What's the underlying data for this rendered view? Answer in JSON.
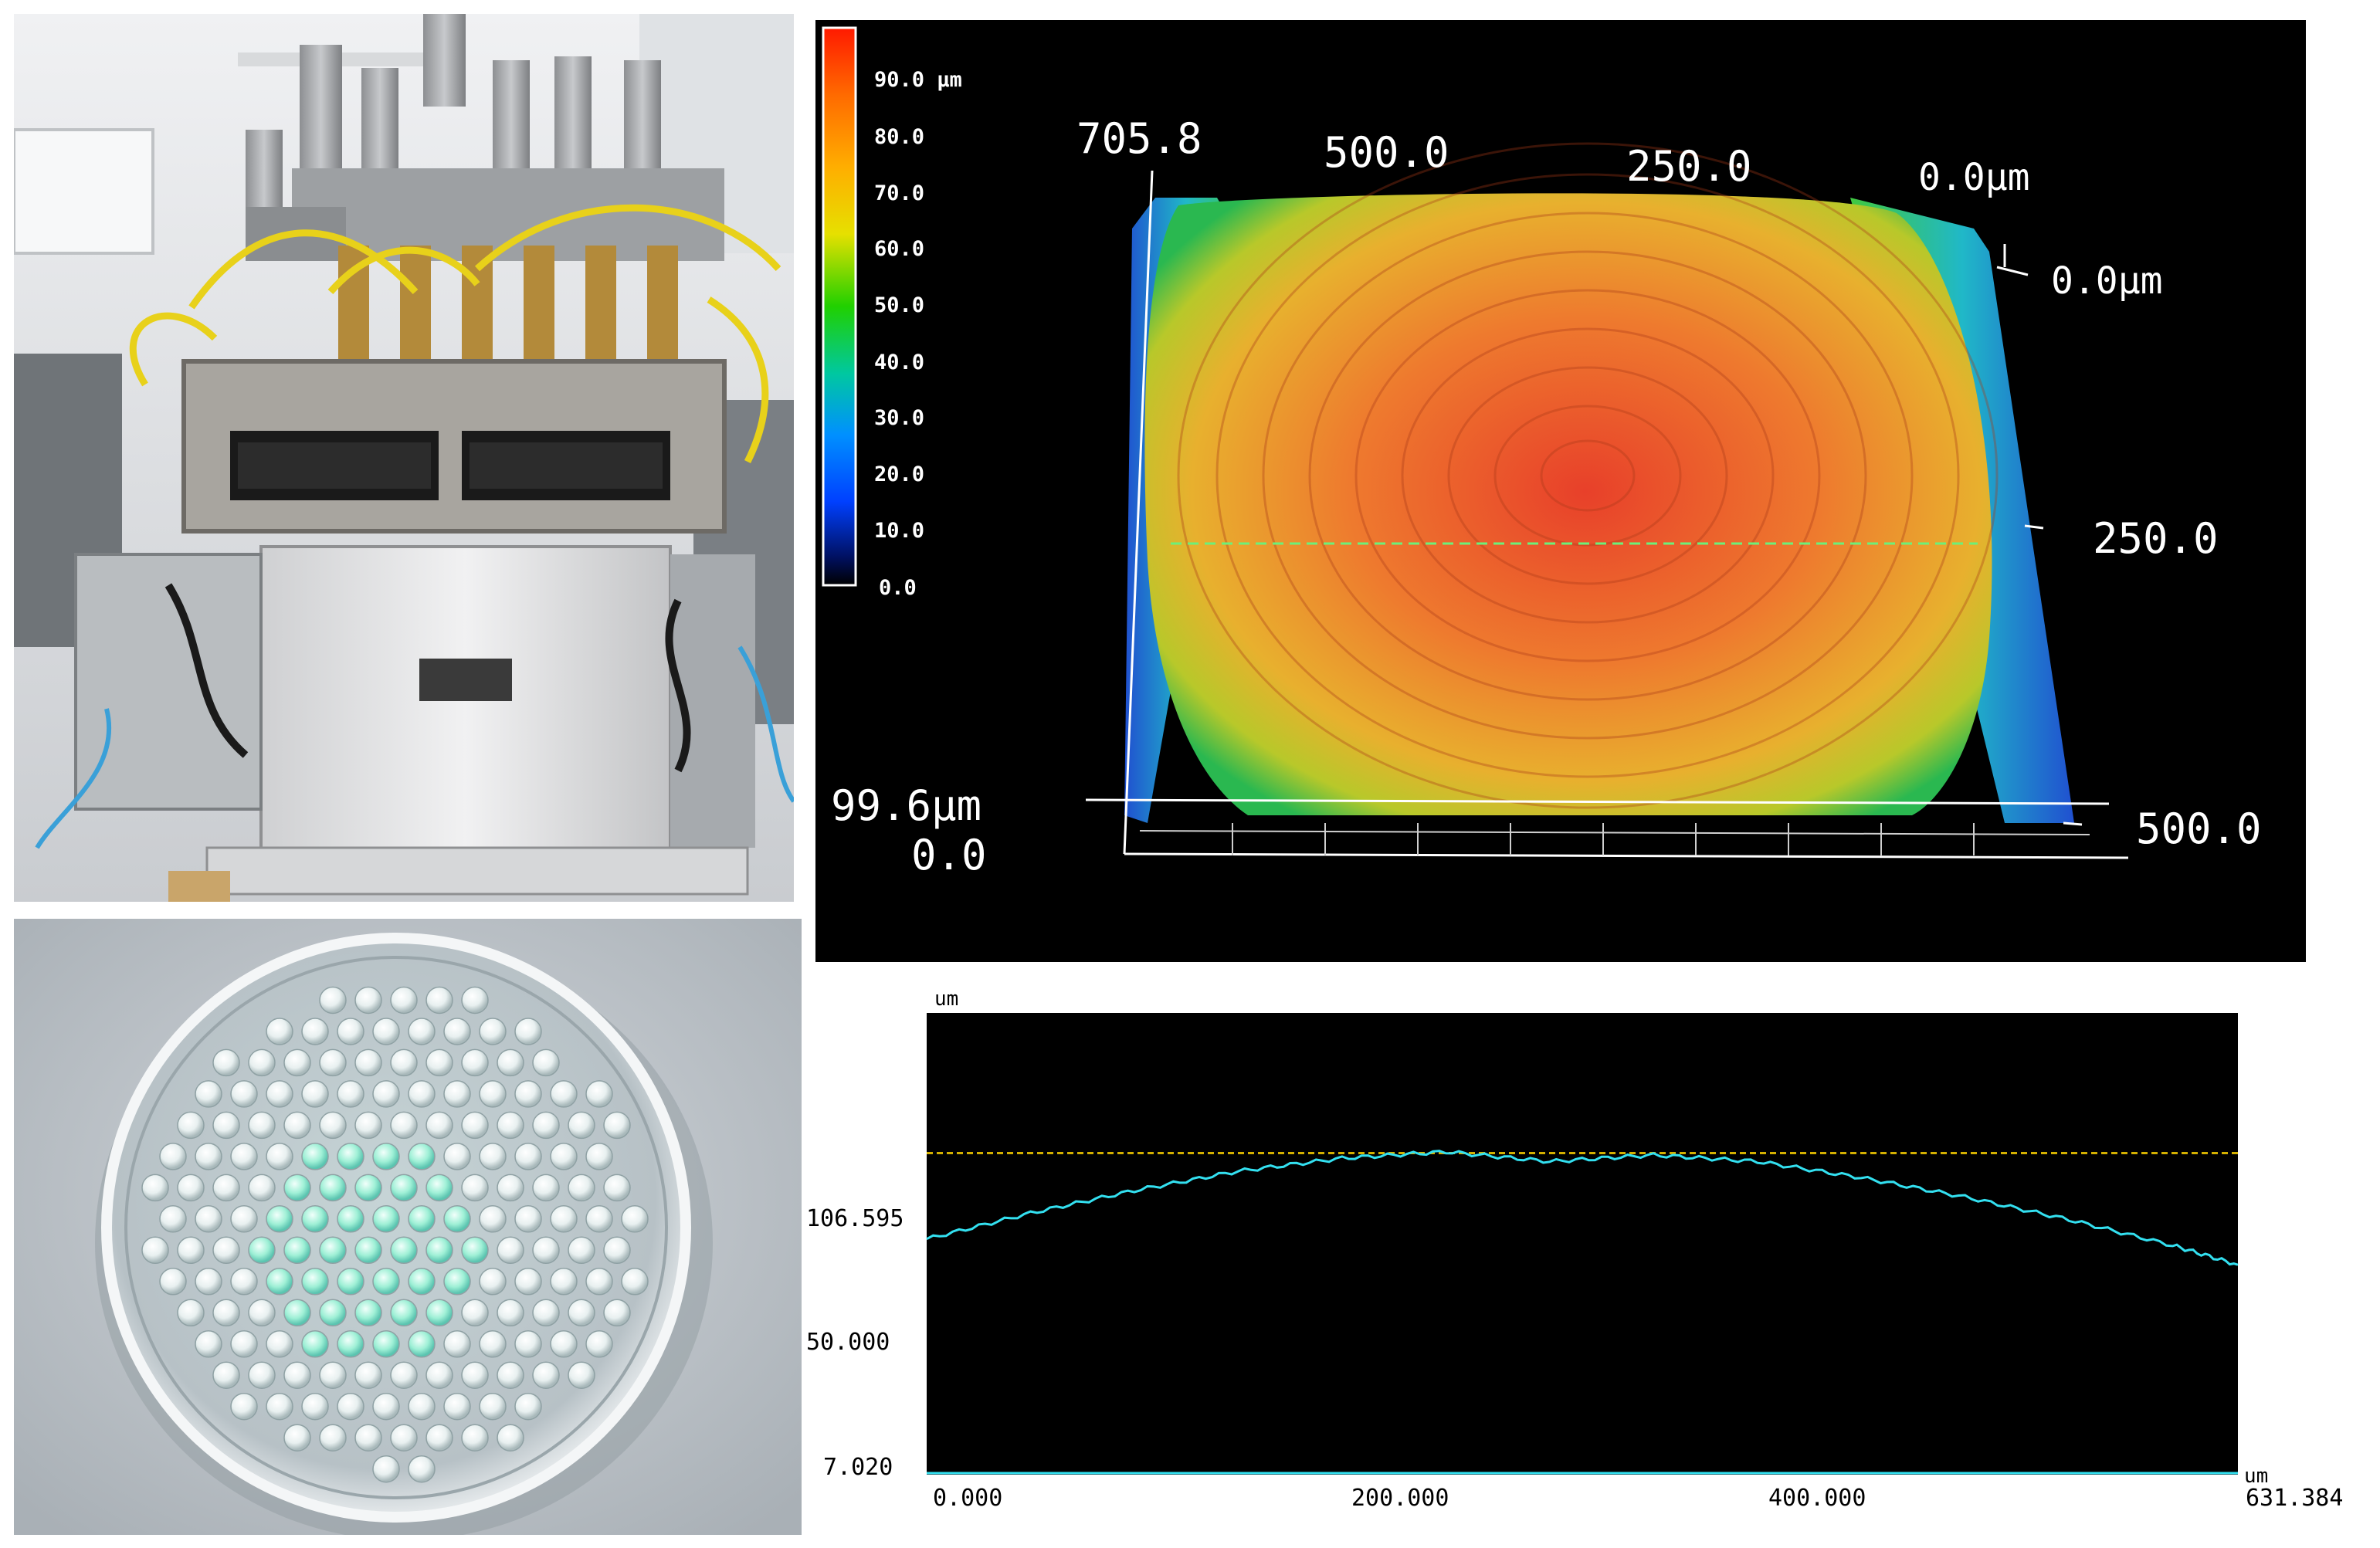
{
  "topography": {
    "colorbar": {
      "tick_labels": [
        "90.0 µm",
        "80.0",
        "70.0",
        "60.0",
        "50.0",
        "40.0",
        "30.0",
        "20.0",
        "10.0",
        "0.0"
      ],
      "colors": [
        "#ff1a00",
        "#ff7a00",
        "#ffc000",
        "#c8e000",
        "#20d000",
        "#00c8b0",
        "#0090ff",
        "#0040ff",
        "#0010a0",
        "#000000"
      ]
    },
    "axis_labels": {
      "top_left": "705.8",
      "top_mid": "500.0",
      "top_right_mid": "250.0",
      "top_right": "0.0µm",
      "right_top": "0.0µm",
      "right_mid": "250.0",
      "right_bottom": "500.0",
      "z_max": "99.6µm",
      "z_min": "0.0"
    }
  },
  "profile": {
    "x_unit": "um",
    "y_unit": "um",
    "y_tick_labels": [
      "106.595",
      "50.000",
      "7.020"
    ],
    "x_tick_labels": [
      "0.000",
      "200.000",
      "400.000",
      "631.384"
    ],
    "reference_line_color": "#d4b000",
    "profile_color": "#33e0f0"
  },
  "chart_data": {
    "type": "line",
    "xlabel": "",
    "ylabel": "",
    "x_unit": "um",
    "y_unit": "um",
    "xlim": [
      0.0,
      631.384
    ],
    "ylim": [
      7.02,
      150
    ],
    "x": [
      0,
      50,
      100,
      150,
      200,
      250,
      300,
      350,
      400,
      450,
      500,
      550,
      600,
      631.384
    ],
    "series": [
      {
        "values": [
          80,
          88,
          95,
          101,
          105,
          107,
          104,
          106,
          104,
          99,
          93,
          86,
          78,
          72
        ]
      }
    ],
    "reference_line_y": 106.595,
    "baseline_y": 7.02
  }
}
